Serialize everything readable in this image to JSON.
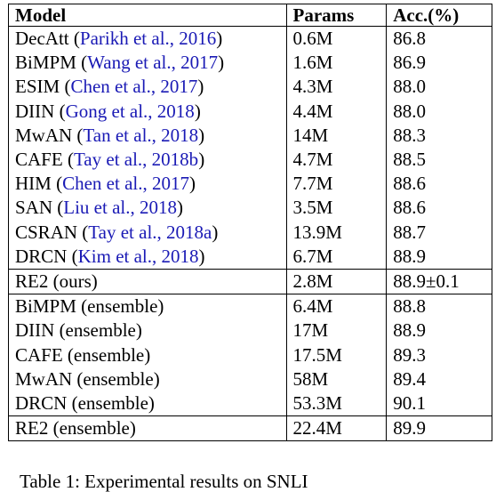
{
  "table": {
    "headers": [
      "Model",
      "Params",
      "Acc.(%)"
    ],
    "groups": [
      {
        "rows": [
          {
            "model": "DecAtt",
            "cite": "Parikh et al., 2016",
            "params": "0.6M",
            "acc": "86.8",
            "bold": false
          },
          {
            "model": "BiMPM",
            "cite": "Wang et al., 2017",
            "params": "1.6M",
            "acc": "86.9",
            "bold": false
          },
          {
            "model": "ESIM",
            "cite": "Chen et al., 2017",
            "params": "4.3M",
            "acc": "88.0",
            "bold": false
          },
          {
            "model": "DIIN",
            "cite": "Gong et al., 2018",
            "params": "4.4M",
            "acc": "88.0",
            "bold": false
          },
          {
            "model": "MwAN",
            "cite": "Tan et al., 2018",
            "params": "14M",
            "acc": "88.3",
            "bold": false
          },
          {
            "model": "CAFE",
            "cite": "Tay et al., 2018b",
            "params": "4.7M",
            "acc": "88.5",
            "bold": false
          },
          {
            "model": "HIM",
            "cite": "Chen et al., 2017",
            "params": "7.7M",
            "acc": "88.6",
            "bold": false
          },
          {
            "model": "SAN",
            "cite": "Liu et al., 2018",
            "params": "3.5M",
            "acc": "88.6",
            "bold": false
          },
          {
            "model": "CSRAN",
            "cite": "Tay et al., 2018a",
            "params": "13.9M",
            "acc": "88.7",
            "bold": false
          },
          {
            "model": "DRCN",
            "cite": "Kim et al., 2018",
            "params": "6.7M",
            "acc": "88.9",
            "bold": true
          }
        ]
      },
      {
        "rows": [
          {
            "model": "RE2 (ours)",
            "cite": "",
            "params": "2.8M",
            "acc": "88.9±0.1",
            "bold": true
          }
        ]
      },
      {
        "rows": [
          {
            "model": "BiMPM (ensemble)",
            "cite": "",
            "params": "6.4M",
            "acc": "88.8",
            "bold": false
          },
          {
            "model": "DIIN (ensemble)",
            "cite": "",
            "params": "17M",
            "acc": "88.9",
            "bold": false
          },
          {
            "model": "CAFE (ensemble)",
            "cite": "",
            "params": "17.5M",
            "acc": "89.3",
            "bold": false
          },
          {
            "model": "MwAN (ensemble)",
            "cite": "",
            "params": "58M",
            "acc": "89.4",
            "bold": false
          },
          {
            "model": "DRCN (ensemble)",
            "cite": "",
            "params": "53.3M",
            "acc": "90.1",
            "bold": true
          }
        ]
      },
      {
        "rows": [
          {
            "model": "RE2 (ensemble)",
            "cite": "",
            "params": "22.4M",
            "acc": "89.9",
            "bold": false
          }
        ]
      }
    ]
  },
  "caption": "Table 1: Experimental results on SNLI"
}
